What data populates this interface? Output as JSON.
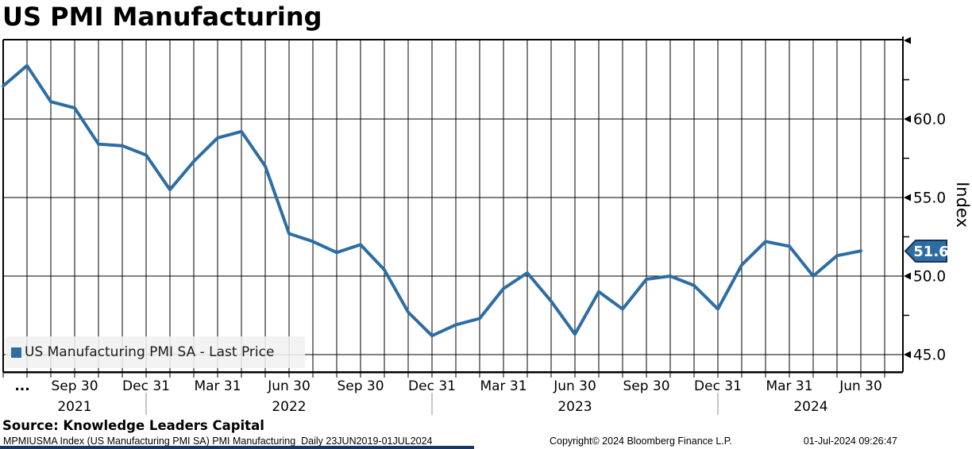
{
  "title": "US PMI Manufacturing",
  "source_line": "Source: Knowledge Leaders Capital",
  "footer": {
    "ticker_info": "MPMIUSMA Index (US Manufacturing PMI SA) PMI Manufacturing  Daily 23JUN2019-01JUL2024",
    "copyright": "Copyright© 2024 Bloomberg Finance L.P.",
    "timestamp": "01-Jul-2024 09:26:47"
  },
  "legend": {
    "marker_icon": "blue-square",
    "label": "US Manufacturing PMI SA - Last Price"
  },
  "last_price_badge": {
    "value": "51.6",
    "bg_color": "#2e6da4",
    "border_color": "#14345c",
    "text_color": "#ffffff"
  },
  "y_axis": {
    "title": "Index",
    "labeled_ticks": [
      60.0,
      55.0,
      50.0,
      45.0
    ],
    "tick_label_format": [
      "60.0",
      "55.0",
      "50.0",
      "45.0"
    ],
    "arrow_ticks": [
      65,
      60,
      55,
      50,
      45
    ],
    "minor_ticks": [
      62.5,
      57.5,
      52.5,
      47.5
    ]
  },
  "x_axis": {
    "truncation_label": "...",
    "quarter_ticks": [
      {
        "label": "Sep 30",
        "month_index": 3
      },
      {
        "label": "Dec 31",
        "month_index": 6
      },
      {
        "label": "Mar 31",
        "month_index": 9
      },
      {
        "label": "Jun 30",
        "month_index": 12
      },
      {
        "label": "Sep 30",
        "month_index": 15
      },
      {
        "label": "Dec 31",
        "month_index": 18
      },
      {
        "label": "Mar 31",
        "month_index": 21
      },
      {
        "label": "Jun 30",
        "month_index": 24
      },
      {
        "label": "Sep 30",
        "month_index": 27
      },
      {
        "label": "Dec 31",
        "month_index": 30
      },
      {
        "label": "Mar 31",
        "month_index": 33
      },
      {
        "label": "Jun 30",
        "month_index": 36
      }
    ],
    "year_labels": [
      {
        "label": "2021",
        "month_index": 3
      },
      {
        "label": "2022",
        "month_index": 12
      },
      {
        "label": "2023",
        "month_index": 24
      },
      {
        "label": "2024",
        "month_index": 33.9
      }
    ],
    "year_separators_month_index": [
      6,
      18,
      30
    ]
  },
  "colors": {
    "line": "#2e6da4",
    "grid": "#000000",
    "frame": "#000000",
    "year_separator": "#8c8c8c",
    "background": "#ffffff"
  },
  "chart_data": {
    "type": "line",
    "title": "US PMI Manufacturing",
    "ylabel": "Index",
    "ylim": [
      43.9,
      65.1
    ],
    "grid": "vertical monthly lines, horizontal lines every 5 index points",
    "legend_position": "bottom-left inside plot",
    "x": [
      "Jun 2021",
      "Jul 2021",
      "Aug 2021",
      "Sep 2021",
      "Oct 2021",
      "Nov 2021",
      "Dec 2021",
      "Jan 2022",
      "Feb 2022",
      "Mar 2022",
      "Apr 2022",
      "May 2022",
      "Jun 2022",
      "Jul 2022",
      "Aug 2022",
      "Sep 2022",
      "Oct 2022",
      "Nov 2022",
      "Dec 2022",
      "Jan 2023",
      "Feb 2023",
      "Mar 2023",
      "Apr 2023",
      "May 2023",
      "Jun 2023",
      "Jul 2023",
      "Aug 2023",
      "Sep 2023",
      "Oct 2023",
      "Nov 2023",
      "Dec 2023",
      "Jan 2024",
      "Feb 2024",
      "Mar 2024",
      "Apr 2024",
      "May 2024",
      "Jun 2024"
    ],
    "series": [
      {
        "name": "US Manufacturing PMI SA - Last Price",
        "color": "#2e6da4",
        "values": [
          62.1,
          63.4,
          61.1,
          60.7,
          58.4,
          58.3,
          57.7,
          55.5,
          57.3,
          58.8,
          59.2,
          57.0,
          52.7,
          52.2,
          51.5,
          52.0,
          50.4,
          47.7,
          46.2,
          46.9,
          47.3,
          49.2,
          50.2,
          48.4,
          46.3,
          49.0,
          47.9,
          49.8,
          50.0,
          49.4,
          47.9,
          50.7,
          52.2,
          51.9,
          50.0,
          51.3,
          51.6
        ]
      }
    ],
    "last_value": 51.6
  }
}
